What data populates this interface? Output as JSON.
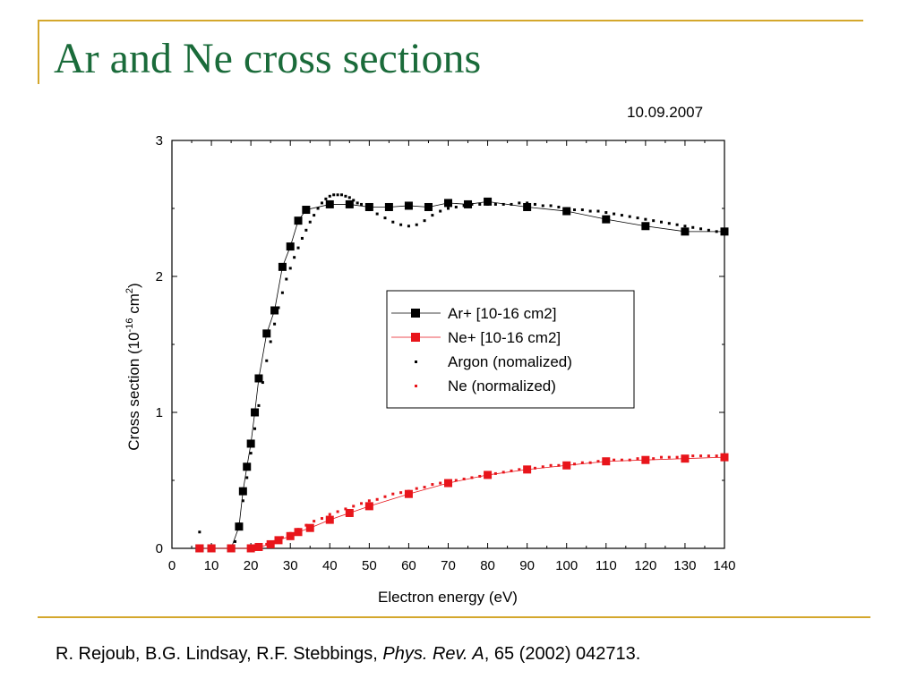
{
  "slide": {
    "title": "Ar and Ne cross sections",
    "date": "10.09.2007",
    "citation_authors": "R. Rejoub, B.G. Lindsay, R.F. Stebbings, ",
    "citation_journal": "Phys. Rev. A",
    "citation_rest": ", 65 (2002) 042713.",
    "colors": {
      "title": "#1a6b3a",
      "frame": "#d4a72c",
      "ar_series": "#000000",
      "ne_series": "#e8151b"
    }
  },
  "chart_data": {
    "type": "scatter",
    "title": "",
    "xlabel": "Electron energy (eV)",
    "ylabel_main": "Cross section (10",
    "ylabel_exp": "-16",
    "ylabel_mid": " cm",
    "ylabel_exp2": "2",
    "ylabel_end": ")",
    "xlim": [
      0,
      140
    ],
    "ylim": [
      0,
      3
    ],
    "xticks": [
      0,
      10,
      20,
      30,
      40,
      50,
      60,
      70,
      80,
      90,
      100,
      110,
      120,
      130,
      140
    ],
    "yticks": [
      0,
      1,
      2,
      3
    ],
    "grid": false,
    "legend_position": "center-right",
    "series": [
      {
        "name": "Ar+ [10-16 cm2]",
        "style": "line-square",
        "color": "#000000",
        "x": [
          7,
          10,
          15,
          17,
          18,
          19,
          20,
          21,
          22,
          24,
          26,
          28,
          30,
          32,
          34,
          40,
          45,
          50,
          55,
          60,
          65,
          70,
          75,
          80,
          90,
          100,
          110,
          120,
          130,
          140
        ],
        "y": [
          0,
          0,
          0,
          0.16,
          0.42,
          0.6,
          0.77,
          1.0,
          1.25,
          1.58,
          1.75,
          2.07,
          2.22,
          2.41,
          2.49,
          2.53,
          2.53,
          2.51,
          2.51,
          2.52,
          2.51,
          2.54,
          2.53,
          2.55,
          2.51,
          2.48,
          2.42,
          2.37,
          2.33,
          2.33
        ]
      },
      {
        "name": "Ne+ [10-16 cm2]",
        "style": "line-square",
        "color": "#e8151b",
        "x": [
          7,
          10,
          15,
          20,
          22,
          25,
          27,
          30,
          32,
          35,
          40,
          45,
          50,
          60,
          70,
          80,
          90,
          100,
          110,
          120,
          130,
          140
        ],
        "y": [
          0,
          0,
          0,
          0,
          0.01,
          0.03,
          0.06,
          0.09,
          0.12,
          0.15,
          0.21,
          0.26,
          0.31,
          0.4,
          0.48,
          0.54,
          0.58,
          0.61,
          0.64,
          0.65,
          0.66,
          0.67
        ]
      },
      {
        "name": "Argon (nomalized)",
        "style": "dots",
        "color": "#000000",
        "x": [
          7,
          16,
          17,
          18,
          19,
          20,
          21,
          22,
          23,
          24,
          25,
          26,
          27,
          28,
          29,
          30,
          31,
          32,
          33,
          34,
          35,
          36,
          37,
          38,
          39,
          40,
          41,
          42,
          43,
          44,
          45,
          46,
          47,
          48,
          50,
          52,
          54,
          56,
          58,
          60,
          62,
          64,
          66,
          68,
          70,
          72,
          74,
          76,
          78,
          80,
          82,
          84,
          86,
          88,
          90,
          92,
          94,
          96,
          98,
          100,
          102,
          104,
          106,
          108,
          110,
          112,
          114,
          116,
          118,
          120,
          122,
          124,
          126,
          128,
          130,
          132,
          134,
          136,
          138,
          140
        ],
        "y": [
          0.12,
          0.05,
          0.18,
          0.35,
          0.52,
          0.7,
          0.88,
          1.05,
          1.22,
          1.38,
          1.52,
          1.65,
          1.77,
          1.88,
          1.98,
          2.06,
          2.14,
          2.21,
          2.28,
          2.34,
          2.4,
          2.45,
          2.5,
          2.54,
          2.57,
          2.59,
          2.6,
          2.6,
          2.6,
          2.59,
          2.58,
          2.56,
          2.54,
          2.53,
          2.49,
          2.46,
          2.43,
          2.4,
          2.38,
          2.37,
          2.38,
          2.41,
          2.45,
          2.48,
          2.5,
          2.51,
          2.52,
          2.53,
          2.53,
          2.53,
          2.53,
          2.53,
          2.53,
          2.54,
          2.54,
          2.53,
          2.52,
          2.52,
          2.51,
          2.5,
          2.49,
          2.49,
          2.48,
          2.48,
          2.47,
          2.46,
          2.45,
          2.44,
          2.43,
          2.42,
          2.41,
          2.4,
          2.39,
          2.38,
          2.37,
          2.36,
          2.35,
          2.34,
          2.33,
          2.32
        ]
      },
      {
        "name": "Ne (normalized)",
        "style": "dots",
        "color": "#e8151b",
        "x": [
          20,
          22,
          24,
          26,
          28,
          30,
          32,
          34,
          36,
          38,
          40,
          42,
          44,
          46,
          48,
          50,
          52,
          54,
          56,
          58,
          60,
          62,
          64,
          66,
          68,
          70,
          72,
          74,
          76,
          78,
          80,
          82,
          84,
          86,
          88,
          90,
          92,
          94,
          96,
          98,
          100,
          102,
          104,
          106,
          108,
          110,
          112,
          114,
          116,
          118,
          120,
          122,
          124,
          126,
          128,
          130,
          132,
          134,
          136,
          138,
          140
        ],
        "y": [
          0.0,
          0.01,
          0.03,
          0.05,
          0.08,
          0.11,
          0.14,
          0.17,
          0.2,
          0.22,
          0.25,
          0.27,
          0.29,
          0.31,
          0.33,
          0.35,
          0.36,
          0.38,
          0.4,
          0.41,
          0.42,
          0.44,
          0.45,
          0.47,
          0.48,
          0.49,
          0.5,
          0.51,
          0.52,
          0.53,
          0.54,
          0.55,
          0.56,
          0.57,
          0.58,
          0.59,
          0.59,
          0.6,
          0.61,
          0.61,
          0.62,
          0.62,
          0.63,
          0.63,
          0.64,
          0.64,
          0.65,
          0.65,
          0.65,
          0.66,
          0.66,
          0.66,
          0.67,
          0.67,
          0.67,
          0.67,
          0.68,
          0.68,
          0.68,
          0.68,
          0.68
        ]
      }
    ]
  }
}
